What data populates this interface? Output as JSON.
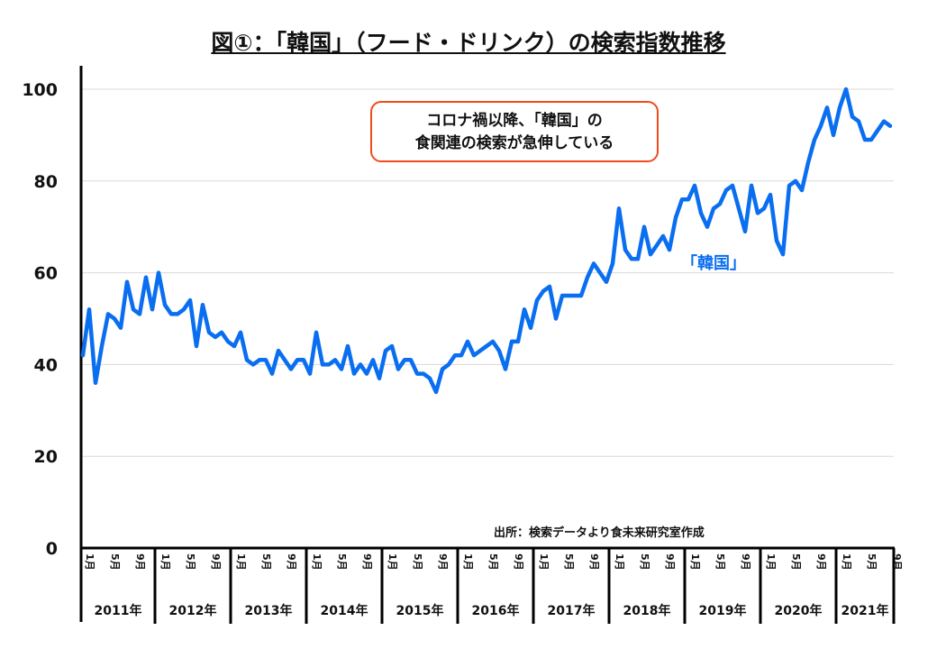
{
  "chart_data": {
    "type": "line",
    "title": "図①：「韓国」（フード・ドリンク）の検索指数推移",
    "annotation": [
      "コロナ禍以降、「韓国」の",
      "食関連の検索が急伸している"
    ],
    "source": "出所：検索データより食未来研究室作成",
    "xlabel": "",
    "ylabel": "",
    "ylim": [
      0,
      100
    ],
    "yticks": [
      "0",
      "20",
      "40",
      "60",
      "80",
      "100"
    ],
    "grid": true,
    "month_ticks": [
      "1月",
      "5月",
      "9月"
    ],
    "years": [
      "2011年",
      "2012年",
      "2013年",
      "2014年",
      "2015年",
      "2016年",
      "2017年",
      "2018年",
      "2019年",
      "2020年",
      "2021年"
    ],
    "series": [
      {
        "name": "「韓国」",
        "color": "#0a6ef0",
        "start": "2011-01",
        "end": "2021-09",
        "values": [
          42,
          52,
          36,
          44,
          51,
          50,
          48,
          58,
          52,
          51,
          59,
          52,
          60,
          53,
          51,
          51,
          52,
          54,
          44,
          53,
          47,
          46,
          47,
          45,
          44,
          47,
          41,
          40,
          41,
          41,
          38,
          43,
          41,
          39,
          41,
          41,
          38,
          47,
          40,
          40,
          41,
          39,
          44,
          38,
          40,
          38,
          41,
          37,
          43,
          44,
          39,
          41,
          41,
          38,
          38,
          37,
          34,
          39,
          40,
          42,
          42,
          45,
          42,
          43,
          44,
          45,
          43,
          39,
          45,
          45,
          52,
          48,
          54,
          56,
          57,
          50,
          55,
          55,
          55,
          55,
          59,
          62,
          60,
          58,
          62,
          74,
          65,
          63,
          63,
          70,
          64,
          66,
          68,
          65,
          72,
          76,
          76,
          79,
          73,
          70,
          74,
          75,
          78,
          79,
          74,
          69,
          79,
          73,
          74,
          77,
          67,
          64,
          79,
          80,
          78,
          84,
          89,
          92,
          96,
          90,
          96,
          100,
          94,
          93,
          89,
          89,
          91,
          93,
          92
        ]
      }
    ]
  }
}
